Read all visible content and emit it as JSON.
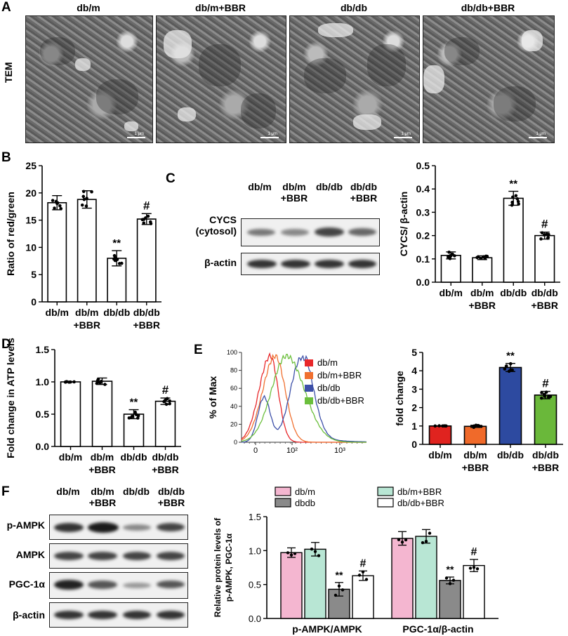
{
  "panel_labels": {
    "A": "A",
    "B": "B",
    "C": "C",
    "D": "D",
    "E": "E",
    "F": "F"
  },
  "panelA": {
    "side_label": "TEM",
    "headers": [
      "db/m",
      "db/m+BBR",
      "db/db",
      "db/db+BBR"
    ],
    "scale_text": "1 μm"
  },
  "chart_data": [
    {
      "id": "B",
      "type": "bar",
      "categories": [
        "db/m",
        "db/m\n+BBR",
        "db/db",
        "db/db\n+BBR"
      ],
      "values": [
        18.2,
        18.8,
        8.0,
        15.2
      ],
      "errors": [
        1.3,
        1.6,
        1.4,
        1.0
      ],
      "annotations": [
        "",
        "",
        "**",
        "#"
      ],
      "ylabel": "Ratio of red/green",
      "ylim": [
        0,
        25
      ],
      "yticks": [
        "0",
        "5",
        "10",
        "15",
        "20",
        "25"
      ]
    },
    {
      "id": "C",
      "type": "bar",
      "categories": [
        "db/m",
        "db/m\n+BBR",
        "db/db",
        "db/db\n+BBR"
      ],
      "values": [
        0.115,
        0.105,
        0.36,
        0.2
      ],
      "errors": [
        0.015,
        0.008,
        0.03,
        0.015
      ],
      "annotations": [
        "",
        "",
        "**",
        "#"
      ],
      "ylabel": "CYCS/ β-actin",
      "ylim": [
        0,
        0.5
      ],
      "yticks": [
        "0.0",
        "0.1",
        "0.2",
        "0.3",
        "0.4",
        "0.5"
      ]
    },
    {
      "id": "D",
      "type": "bar",
      "categories": [
        "db/m",
        "db/m\n+BBR",
        "db/db",
        "db/db\n+BBR"
      ],
      "values": [
        1.0,
        1.01,
        0.5,
        0.7
      ],
      "errors": [
        0.005,
        0.05,
        0.07,
        0.05
      ],
      "annotations": [
        "",
        "",
        "**",
        "#"
      ],
      "ylabel": "Fold change in ATP levels",
      "ylim": [
        0,
        1.5
      ],
      "yticks": [
        "0.0",
        "0.5",
        "1.0",
        "1.5"
      ]
    },
    {
      "id": "E_hist",
      "type": "line",
      "ylabel": "% of Max",
      "yticks": [
        "0",
        "20",
        "40",
        "60",
        "80",
        "100"
      ],
      "xticks": [
        "0",
        "10²",
        "10³"
      ],
      "series": [
        {
          "name": "db/m",
          "color": "#e8272a"
        },
        {
          "name": "db/m+BBR",
          "color": "#f07030"
        },
        {
          "name": "db/db",
          "color": "#3c4fa8"
        },
        {
          "name": "db/db+BBR",
          "color": "#6bbf3c"
        }
      ]
    },
    {
      "id": "E_bar",
      "type": "bar",
      "categories": [
        "db/m",
        "db/m\n+BBR",
        "db/db",
        "db/db\n+BBR"
      ],
      "values": [
        1.0,
        0.98,
        4.18,
        2.68
      ],
      "errors": [
        0.01,
        0.06,
        0.22,
        0.2
      ],
      "colors": [
        "#e0231f",
        "#f06a2a",
        "#2d4aa0",
        "#6ab83a"
      ],
      "annotations": [
        "",
        "",
        "**",
        "#"
      ],
      "ylabel": "fold change",
      "ylim": [
        0,
        5
      ],
      "yticks": [
        "0",
        "1",
        "2",
        "3",
        "4",
        "5"
      ]
    },
    {
      "id": "F",
      "type": "bar",
      "groups": [
        "p-AMPK/AMPK",
        "PGC-1α/β-actin"
      ],
      "series": [
        {
          "name": "db/m",
          "color": "#f4b6d0",
          "values": [
            0.97,
            1.18
          ],
          "errors": [
            0.07,
            0.1
          ]
        },
        {
          "name": "dbdb",
          "color": "#8a8a8a",
          "values": [
            0.43,
            0.56
          ],
          "errors": [
            0.1,
            0.05
          ]
        },
        {
          "name": "db/m+BBR",
          "color": "#b8e6d4",
          "values": [
            1.02,
            1.21
          ],
          "errors": [
            0.1,
            0.1
          ]
        },
        {
          "name": "db/db+BBR",
          "color": "#ffffff",
          "values": [
            0.63,
            0.78
          ],
          "errors": [
            0.07,
            0.09
          ]
        }
      ],
      "bar_order": [
        0,
        2,
        1,
        3
      ],
      "annotations": {
        "1": "**",
        "3": "#"
      },
      "ylabel_1": "Relative protein levels of",
      "ylabel_2": "p-AMPK, PGC-1α",
      "ylim": [
        0,
        1.5
      ],
      "yticks": [
        "0.0",
        "0.5",
        "1.0",
        "1.5"
      ]
    }
  ],
  "panelC_blot": {
    "lanes": [
      "db/m",
      "db/m\n+BBR",
      "db/db",
      "db/db\n+BBR"
    ],
    "rows": [
      "CYCS\n(cytosol)",
      "β-actin"
    ]
  },
  "panelF_blot": {
    "lanes": [
      "db/m",
      "db/m\n+BBR",
      "db/db",
      "db/db\n+BBR"
    ],
    "rows": [
      "p-AMPK",
      "AMPK",
      "PGC-1α",
      "β-actin"
    ]
  }
}
